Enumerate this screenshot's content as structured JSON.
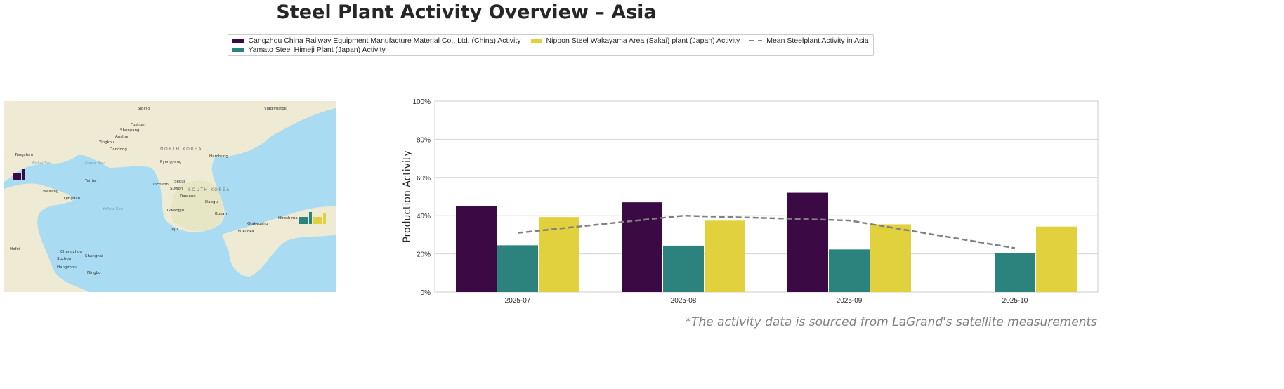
{
  "title": "Steel Plant Activity Overview – Asia",
  "footer": "*The activity data is sourced from LaGrand's satellite measurements",
  "legend": [
    {
      "label": "Cangzhou China Railway Equipment Manufacture Material Co., Ltd. (China) Activity",
      "color": "#3b0a45",
      "type": "bar"
    },
    {
      "label": "Yamato Steel Himeji Plant (Japan) Activity",
      "color": "#2c837e",
      "type": "bar"
    },
    {
      "label": "Nippon Steel Wakayama Area (Sakai) plant (Japan) Activity",
      "color": "#e1d13c",
      "type": "bar"
    },
    {
      "label": "Mean Steelplant Activity in Asia",
      "color": "#808080",
      "type": "dashed-line"
    }
  ],
  "map": {
    "labels": [
      "Siping",
      "Vladivostok",
      "Fushun",
      "Shenyang",
      "Anshan",
      "Yingkou",
      "Tangshan",
      "Dandong",
      "NORTH KOREA",
      "Hamhung",
      "Pyongyang",
      "Bohai Sea",
      "Korea Bay",
      "Yantai",
      "Incheon",
      "Seoul",
      "Suwon",
      "SOUTH KOREA",
      "Daejeon",
      "Daegu",
      "Weifang",
      "Qingdao",
      "Yellow Sea",
      "Gwangju",
      "Busan",
      "Jeju",
      "Kitakyushu",
      "Fukuoka",
      "Hiroshima",
      "Hefei",
      "Changzhou",
      "Suzhou",
      "Shanghai",
      "Hangzhou",
      "Ningbo"
    ],
    "markers": [
      {
        "plant": "Cangzhou",
        "color": "#3b0a45",
        "icon": "factory-icon"
      },
      {
        "plant": "Yamato Steel Himeji",
        "color": "#2c837e",
        "icon": "factory-icon"
      },
      {
        "plant": "Nippon Steel Wakayama",
        "color": "#e1d13c",
        "icon": "factory-icon"
      }
    ]
  },
  "chart_data": {
    "type": "bar",
    "categories": [
      "2025-07",
      "2025-08",
      "2025-09",
      "2025-10"
    ],
    "series": [
      {
        "name": "Cangzhou China Railway Equipment Manufacture Material Co., Ltd. (China) Activity",
        "color": "#3b0a45",
        "values": [
          45,
          47,
          52,
          null
        ]
      },
      {
        "name": "Yamato Steel Himeji Plant (Japan) Activity",
        "color": "#2c837e",
        "values": [
          24.5,
          24.3,
          22.3,
          20.5
        ]
      },
      {
        "name": "Nippon Steel Wakayama Area (Sakai) plant (Japan) Activity",
        "color": "#e1d13c",
        "values": [
          39.3,
          37.4,
          35.5,
          34.3
        ]
      }
    ],
    "line": {
      "name": "Mean Steelplant Activity in Asia",
      "color": "#808080",
      "style": "dashed",
      "values": [
        31,
        40,
        37.5,
        23
      ]
    },
    "ylabel": "Production Activity",
    "xlabel": "",
    "ylim": [
      0,
      100
    ],
    "yticks": [
      "0%",
      "20%",
      "40%",
      "60%",
      "80%",
      "100%"
    ],
    "grid": true,
    "legend_position": "top-center"
  }
}
